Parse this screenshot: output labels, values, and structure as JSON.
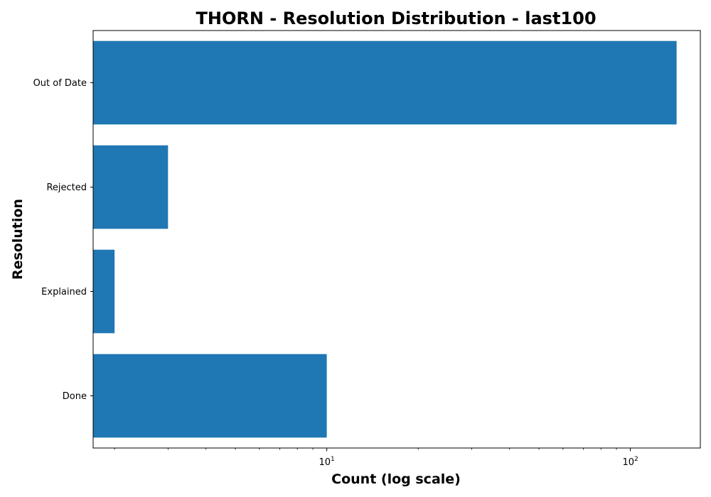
{
  "chart_data": {
    "type": "bar",
    "orientation": "horizontal",
    "title": "THORN - Resolution Distribution - last100",
    "xlabel": "Count (log scale)",
    "ylabel": "Resolution",
    "x_scale": "log",
    "xlim": [
      1.7,
      170
    ],
    "x_major_ticks": [
      {
        "base": "10",
        "exp": "1",
        "value": 10
      },
      {
        "base": "10",
        "exp": "2",
        "value": 100
      }
    ],
    "categories": [
      "Out of Date",
      "Rejected",
      "Explained",
      "Done"
    ],
    "values": [
      142,
      3,
      2,
      10
    ],
    "bar_color": "#1f77b4",
    "grid": false,
    "legend": "none"
  }
}
